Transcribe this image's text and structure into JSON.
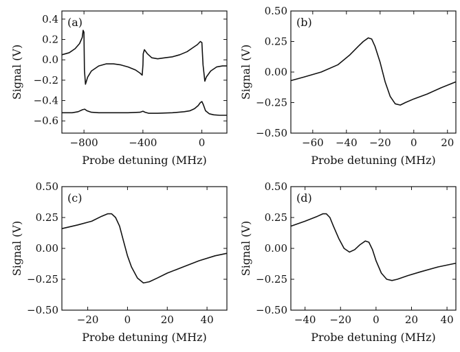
{
  "chart_data": [
    {
      "type": "line",
      "panel_label": "(a)",
      "xlabel": "Probe detuning (MHz)",
      "ylabel": "Signal (V)",
      "xlim": [
        -950,
        170
      ],
      "ylim": [
        -0.72,
        0.48
      ],
      "xticks": [
        -800,
        -400,
        0
      ],
      "xtick_labels": [
        "−800",
        "−400",
        "0"
      ],
      "yticks": [
        0.4,
        0.2,
        0.0,
        -0.2,
        -0.4,
        -0.6
      ],
      "ytick_labels": [
        "0.4",
        "0.2",
        "0.0",
        "−0.2",
        "−0.4",
        "−0.6"
      ],
      "series": [
        {
          "x": [
            -950,
            -900,
            -860,
            -830,
            -812,
            -806,
            -800,
            -797,
            -790,
            -775,
            -750,
            -700,
            -650,
            -600,
            -550,
            -500,
            -450,
            -420,
            -405,
            -400,
            -398,
            -390,
            -370,
            -340,
            -300,
            -250,
            -200,
            -150,
            -100,
            -60,
            -30,
            -10,
            0,
            8,
            20,
            30,
            60,
            100,
            140,
            170
          ],
          "y": [
            0.05,
            0.07,
            0.11,
            0.16,
            0.22,
            0.29,
            0.27,
            -0.1,
            -0.24,
            -0.17,
            -0.11,
            -0.06,
            -0.04,
            -0.04,
            -0.05,
            -0.07,
            -0.1,
            -0.13,
            -0.15,
            -0.05,
            0.06,
            0.1,
            0.06,
            0.02,
            0.01,
            0.02,
            0.03,
            0.05,
            0.08,
            0.12,
            0.15,
            0.18,
            0.17,
            -0.05,
            -0.21,
            -0.17,
            -0.11,
            -0.07,
            -0.06,
            -0.06
          ]
        },
        {
          "x": [
            -950,
            -880,
            -840,
            -810,
            -795,
            -780,
            -750,
            -700,
            -600,
            -500,
            -420,
            -400,
            -385,
            -360,
            -300,
            -200,
            -120,
            -80,
            -50,
            -25,
            -10,
            0,
            10,
            25,
            50,
            80,
            120,
            170
          ],
          "y": [
            -0.52,
            -0.52,
            -0.51,
            -0.49,
            -0.485,
            -0.5,
            -0.515,
            -0.52,
            -0.52,
            -0.52,
            -0.515,
            -0.505,
            -0.515,
            -0.525,
            -0.525,
            -0.52,
            -0.51,
            -0.5,
            -0.48,
            -0.45,
            -0.42,
            -0.41,
            -0.44,
            -0.5,
            -0.53,
            -0.54,
            -0.545,
            -0.545
          ]
        }
      ]
    },
    {
      "type": "line",
      "panel_label": "(b)",
      "xlabel": "Probe detuning (MHz)",
      "ylabel": "Signal (V)",
      "xlim": [
        -73,
        25
      ],
      "ylim": [
        -0.5,
        0.5
      ],
      "xticks": [
        -60,
        -40,
        -20,
        0,
        20
      ],
      "xtick_labels": [
        "−60",
        "−40",
        "−20",
        "0",
        "20"
      ],
      "yticks": [
        0.5,
        0.25,
        0.0,
        -0.25,
        -0.5
      ],
      "ytick_labels": [
        "0.50",
        "0.25",
        "0.00",
        "−0.25",
        "−0.50"
      ],
      "series": [
        {
          "x": [
            -73,
            -65,
            -55,
            -45,
            -38,
            -33,
            -30,
            -27,
            -25,
            -23,
            -20,
            -17,
            -14,
            -11,
            -8,
            -5,
            0,
            8,
            16,
            25
          ],
          "y": [
            -0.07,
            -0.04,
            0.0,
            0.06,
            0.14,
            0.21,
            0.25,
            0.28,
            0.27,
            0.21,
            0.08,
            -0.08,
            -0.2,
            -0.26,
            -0.27,
            -0.25,
            -0.22,
            -0.18,
            -0.13,
            -0.08
          ]
        }
      ]
    },
    {
      "type": "line",
      "panel_label": "(c)",
      "xlabel": "Probe detuning (MHz)",
      "ylabel": "Signal (V)",
      "xlim": [
        -33,
        50
      ],
      "ylim": [
        -0.5,
        0.5
      ],
      "xticks": [
        -20,
        0,
        20,
        40
      ],
      "xtick_labels": [
        "−20",
        "0",
        "20",
        "40"
      ],
      "yticks": [
        0.5,
        0.25,
        0.0,
        -0.25,
        -0.5
      ],
      "ytick_labels": [
        "0.50",
        "0.25",
        "0.00",
        "−0.25",
        "−0.50"
      ],
      "series": [
        {
          "x": [
            -33,
            -25,
            -18,
            -13,
            -10,
            -8,
            -6,
            -4,
            -2,
            0,
            2,
            5,
            8,
            11,
            15,
            20,
            28,
            36,
            44,
            50
          ],
          "y": [
            0.16,
            0.19,
            0.22,
            0.26,
            0.28,
            0.28,
            0.25,
            0.18,
            0.06,
            -0.06,
            -0.15,
            -0.24,
            -0.28,
            -0.27,
            -0.24,
            -0.2,
            -0.15,
            -0.1,
            -0.06,
            -0.04
          ]
        }
      ]
    },
    {
      "type": "line",
      "panel_label": "(d)",
      "xlabel": "Probe detuning (MHz)",
      "ylabel": "Signal (V)",
      "xlim": [
        -48,
        45
      ],
      "ylim": [
        -0.5,
        0.5
      ],
      "xticks": [
        -40,
        -20,
        0,
        20,
        40
      ],
      "xtick_labels": [
        "−40",
        "−20",
        "0",
        "20",
        "40"
      ],
      "yticks": [
        0.5,
        0.25,
        0.0,
        -0.25,
        -0.5
      ],
      "ytick_labels": [
        "0.50",
        "0.25",
        "0.00",
        "−0.25",
        "−0.50"
      ],
      "series": [
        {
          "x": [
            -48,
            -40,
            -33,
            -30,
            -28,
            -26,
            -24,
            -21,
            -18,
            -15,
            -12,
            -9,
            -6,
            -4,
            -2,
            0,
            3,
            6,
            9,
            12,
            18,
            25,
            35,
            45
          ],
          "y": [
            0.18,
            0.22,
            0.26,
            0.28,
            0.28,
            0.25,
            0.18,
            0.08,
            0.0,
            -0.03,
            -0.01,
            0.03,
            0.06,
            0.05,
            -0.01,
            -0.1,
            -0.2,
            -0.25,
            -0.26,
            -0.25,
            -0.22,
            -0.19,
            -0.15,
            -0.12
          ]
        }
      ]
    }
  ]
}
